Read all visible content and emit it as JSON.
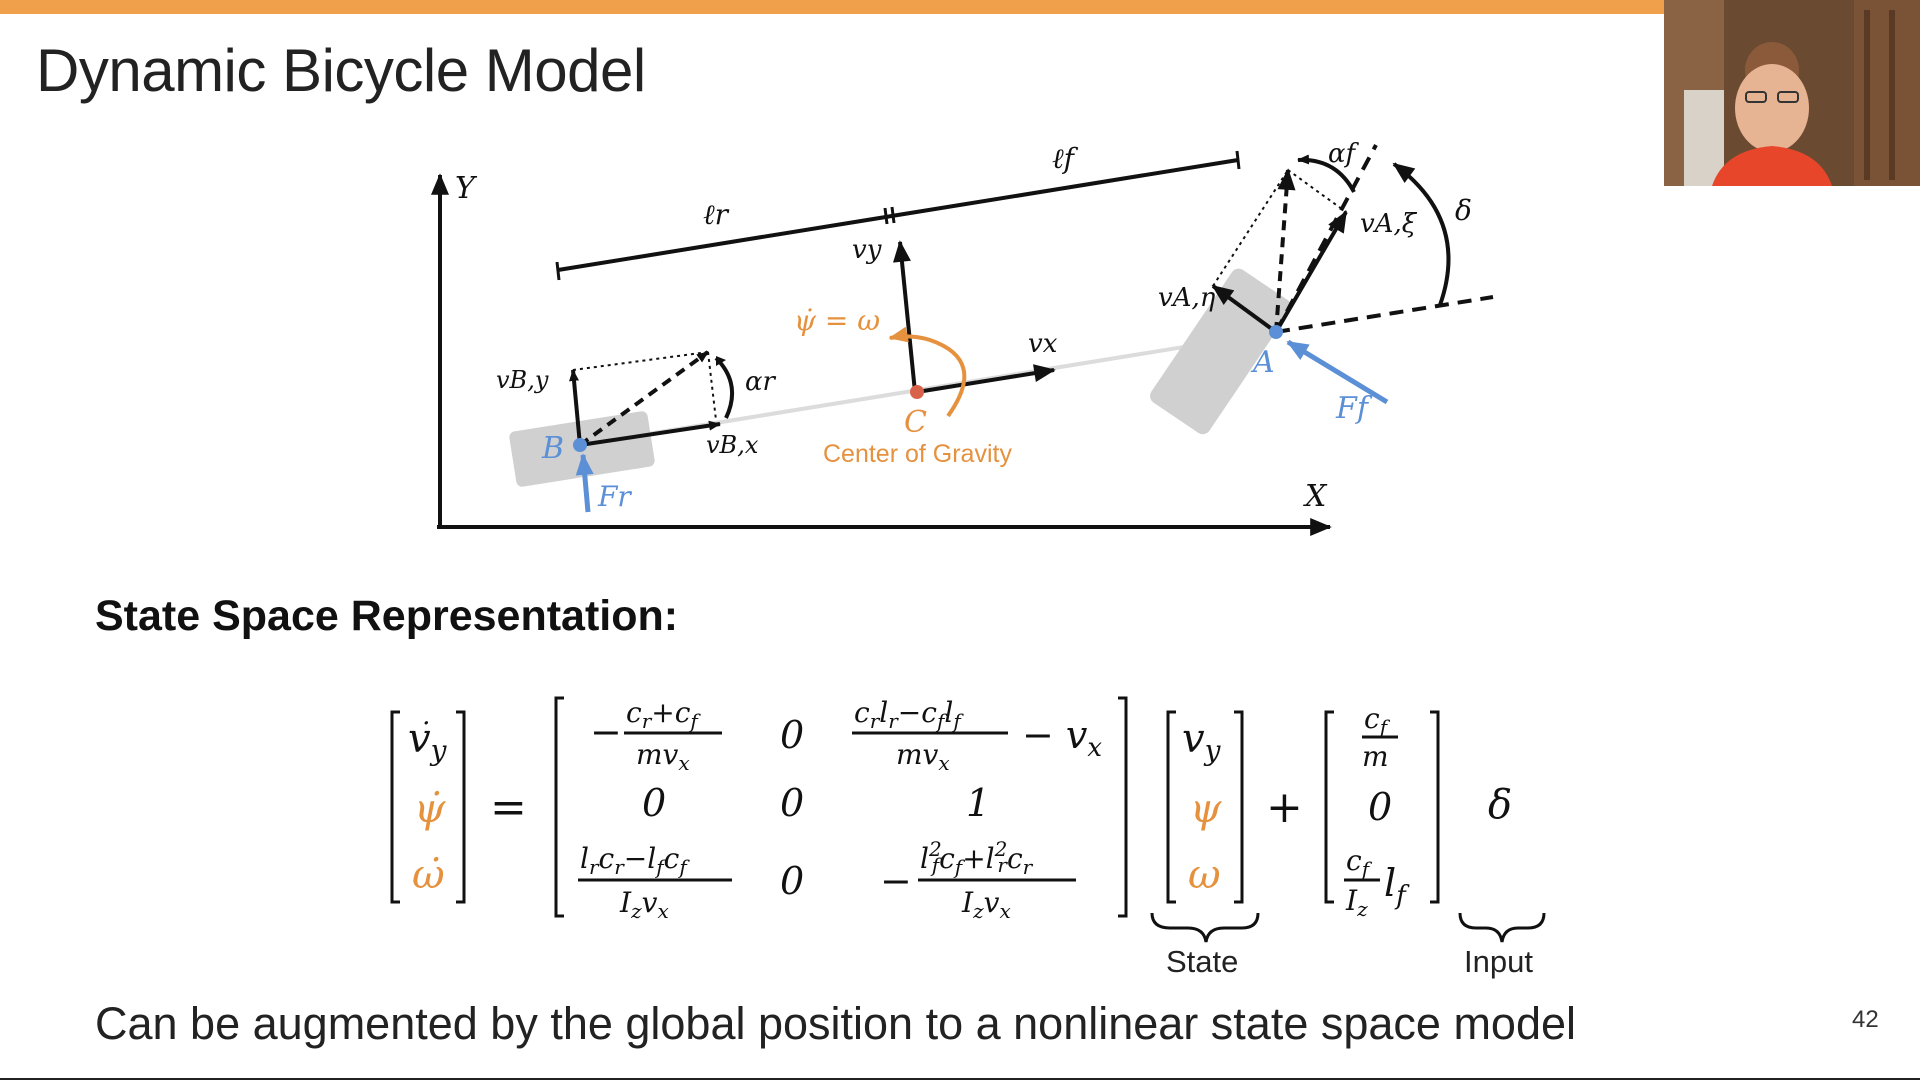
{
  "slide": {
    "title": "Dynamic Bicycle Model",
    "section_heading": "State Space Representation:",
    "footer_text": "Can be augmented by the global position to a nonlinear state space model",
    "page_number": "42"
  },
  "diagram": {
    "axis_y": "Y",
    "axis_x": "X",
    "len_rear": "ℓr",
    "len_front": "ℓf",
    "vy": "vy",
    "vx": "vx",
    "psi_dot": "ψ̇ = ω",
    "point_c": "C",
    "cog_label": "Center of Gravity",
    "point_b": "B",
    "point_a": "A",
    "vBy": "vB,y",
    "vBx": "vB,x",
    "alpha_r": "αr",
    "alpha_f": "αf",
    "delta": "δ",
    "vAxi": "vA,ξ",
    "vAeta": "vA,η",
    "Fr": "Fr",
    "Ff": "Ff"
  },
  "equation": {
    "state_label": "State",
    "input_label": "Input"
  },
  "colors": {
    "accent_orange": "#f0a04b",
    "math_orange": "#e5913e",
    "force_blue": "#5b8fd6",
    "cog_red": "#d9634a",
    "wheel_gray": "#d0d0d0"
  }
}
